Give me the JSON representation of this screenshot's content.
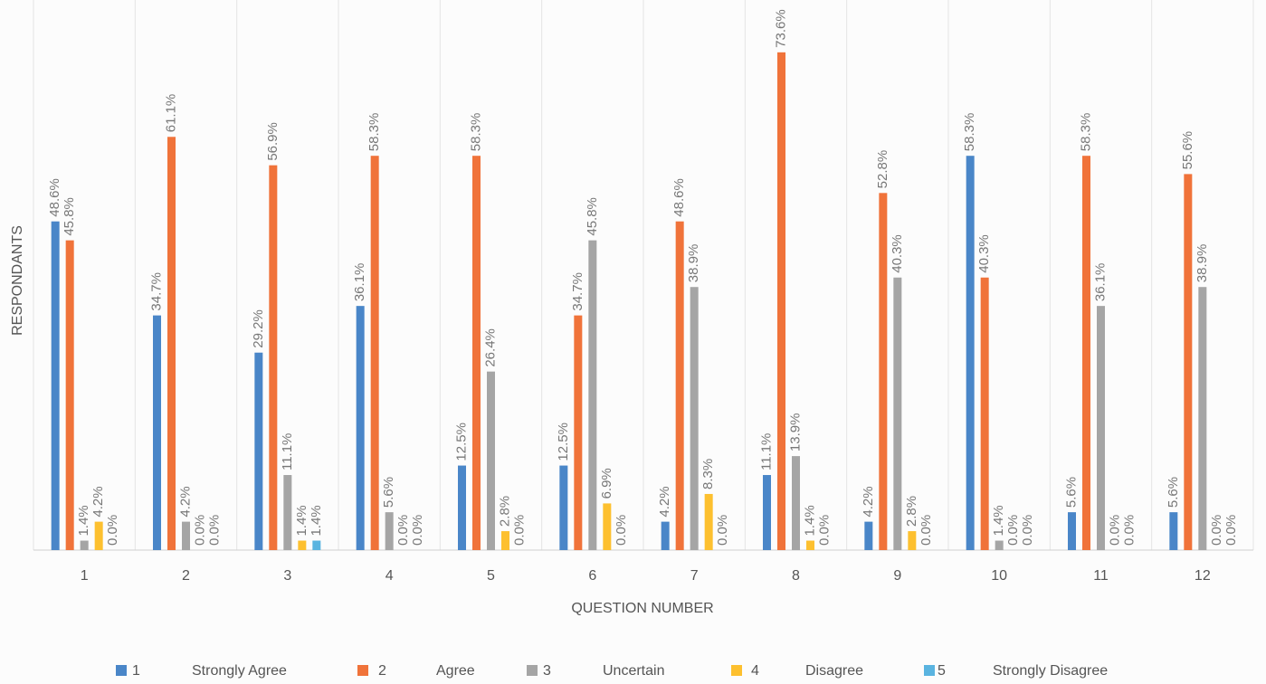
{
  "chart_data": {
    "type": "bar",
    "x_label": "QUESTION NUMBER",
    "y_label": "RESPONDANTS",
    "categories": [
      "1",
      "2",
      "3",
      "4",
      "5",
      "6",
      "7",
      "8",
      "9",
      "10",
      "11",
      "12"
    ],
    "ylim": [
      0,
      80
    ],
    "grid": true,
    "series": [
      {
        "name": "1",
        "description": "Strongly Agree",
        "color": "#4a86c8",
        "values": [
          48.6,
          34.7,
          29.2,
          36.1,
          12.5,
          12.5,
          4.2,
          11.1,
          4.2,
          58.3,
          5.6,
          5.6
        ],
        "value_labels": [
          "48.6%",
          "34.7%",
          "29.2%",
          "36.1%",
          "12.5%",
          "12.5%",
          "4.2%",
          "11.1%",
          "4.2%",
          "58.3%",
          "5.6%",
          "5.6%"
        ]
      },
      {
        "name": "2",
        "description": "Agree",
        "color": "#f0733a",
        "values": [
          45.8,
          61.1,
          56.9,
          58.3,
          58.3,
          34.7,
          48.6,
          73.6,
          52.8,
          40.3,
          58.3,
          55.6
        ],
        "value_labels": [
          "45.8%",
          "61.1%",
          "56.9%",
          "58.3%",
          "58.3%",
          "34.7%",
          "48.6%",
          "73.6%",
          "52.8%",
          "40.3%",
          "58.3%",
          "55.6%"
        ]
      },
      {
        "name": "3",
        "description": "Uncertain",
        "color": "#a5a5a5",
        "values": [
          1.4,
          4.2,
          11.1,
          5.6,
          26.4,
          45.8,
          38.9,
          13.9,
          40.3,
          1.4,
          36.1,
          38.9
        ],
        "value_labels": [
          "1.4%",
          "4.2%",
          "11.1%",
          "5.6%",
          "26.4%",
          "45.8%",
          "38.9%",
          "13.9%",
          "40.3%",
          "1.4%",
          "36.1%",
          "38.9%"
        ]
      },
      {
        "name": "4",
        "description": "Disagree",
        "color": "#fdc02f",
        "values": [
          4.2,
          0.0,
          1.4,
          0.0,
          2.8,
          6.9,
          8.3,
          1.4,
          2.8,
          0.0,
          0.0,
          0.0
        ],
        "value_labels": [
          "4.2%",
          "0.0%",
          "1.4%",
          "0.0%",
          "2.8%",
          "6.9%",
          "8.3%",
          "1.4%",
          "2.8%",
          "0.0%",
          "0.0%",
          "0.0%"
        ]
      },
      {
        "name": "5",
        "description": "Strongly Disagree",
        "color": "#5ab4e0",
        "values": [
          0.0,
          0.0,
          1.4,
          0.0,
          0.0,
          0.0,
          0.0,
          0.0,
          0.0,
          0.0,
          0.0,
          0.0
        ],
        "value_labels": [
          "0.0%",
          "0.0%",
          "1.4%",
          "0.0%",
          "0.0%",
          "0.0%",
          "0.0%",
          "0.0%",
          "0.0%",
          "0.0%",
          "0.0%",
          "0.0%"
        ]
      }
    ]
  }
}
